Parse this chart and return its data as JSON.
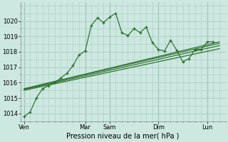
{
  "background_color": "#cce8e0",
  "grid_color": "#aaccC4",
  "line_color": "#2a6e2a",
  "xlabel": "Pression niveau de la mer( hPa )",
  "ylim": [
    1013.5,
    1021.2
  ],
  "yticks": [
    1014,
    1015,
    1016,
    1017,
    1018,
    1019,
    1020
  ],
  "x_day_labels": [
    "Ven",
    "Mar",
    "Sam",
    "Dim",
    "Lun"
  ],
  "x_day_positions": [
    0,
    5,
    7,
    11,
    15
  ],
  "xlim": [
    -0.3,
    16.5
  ],
  "series0_x": [
    0,
    0.5,
    1.0,
    1.5,
    2.0,
    2.5,
    3.0,
    3.5,
    4.0,
    4.5,
    5.0,
    5.5,
    6.0,
    6.5,
    7.0,
    7.5,
    8.0,
    8.5,
    9.0,
    9.5,
    10.0,
    10.5,
    11.0,
    11.5,
    12.0,
    12.5,
    13.0,
    13.5,
    14.0,
    14.5,
    15.0,
    15.5
  ],
  "series0_y": [
    1013.8,
    1014.1,
    1015.0,
    1015.6,
    1015.8,
    1016.0,
    1016.3,
    1016.6,
    1017.1,
    1017.8,
    1018.05,
    1019.7,
    1020.2,
    1019.9,
    1020.25,
    1020.5,
    1019.25,
    1019.05,
    1019.5,
    1019.25,
    1019.6,
    1018.6,
    1018.15,
    1018.05,
    1018.75,
    1018.1,
    1017.35,
    1017.55,
    1018.15,
    1018.15,
    1018.65,
    1018.65
  ],
  "trend1_x": [
    0,
    16
  ],
  "trend1_y": [
    1015.6,
    1018.65
  ],
  "trend2_x": [
    0,
    16
  ],
  "trend2_y": [
    1015.6,
    1018.55
  ],
  "trend3_x": [
    0,
    16
  ],
  "trend3_y": [
    1015.55,
    1018.4
  ],
  "trend4_x": [
    0,
    16
  ],
  "trend4_y": [
    1015.5,
    1018.2
  ]
}
